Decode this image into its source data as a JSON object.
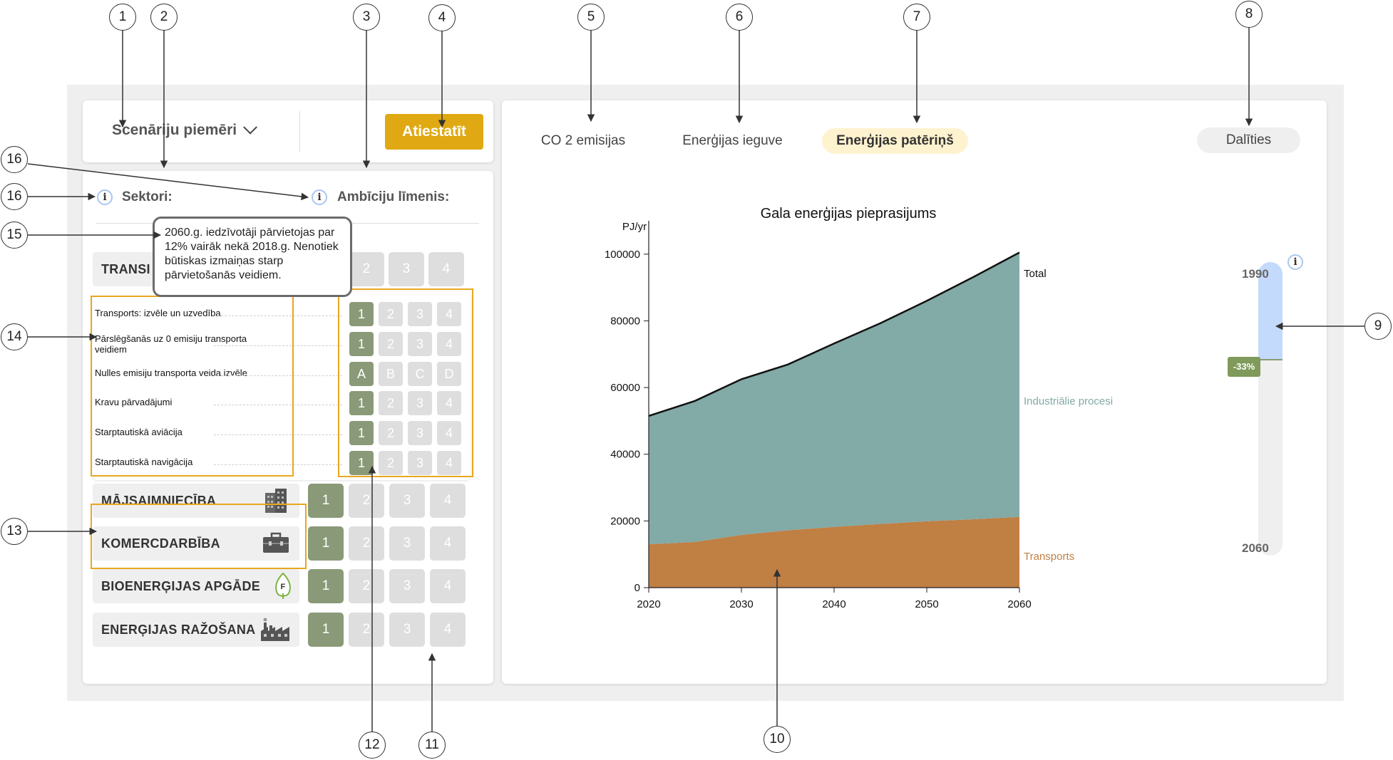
{
  "header": {
    "scenario_label": "Scenāriju piemēri",
    "reset_button": "Atiestatīt"
  },
  "left": {
    "sectors_label": "Sektori:",
    "ambition_label": "Ambīciju līmenis:",
    "tooltip": "2060.g. iedzīvotāji pārvietojas par 12% vairāk nekā 2018.g. Nenotiek būtiskas izmaiņas starp pārvietošanās veidiem.",
    "transport_label": "TRANSI",
    "transport_levels": [
      "2",
      "3",
      "4"
    ],
    "sub_items": [
      {
        "label": "Transports: izvēle un uzvedība",
        "levels": [
          "1",
          "2",
          "3",
          "4"
        ]
      },
      {
        "label": "Pārslēgšanās uz 0 emisiju transporta veidiem",
        "levels": [
          "1",
          "2",
          "3",
          "4"
        ]
      },
      {
        "label": "Nulles emisiju transporta veida izvēle",
        "levels": [
          "A",
          "B",
          "C",
          "D"
        ]
      },
      {
        "label": "Kravu pārvadājumi",
        "levels": [
          "1",
          "2",
          "3",
          "4"
        ]
      },
      {
        "label": "Starptautiskā aviācija",
        "levels": [
          "1",
          "2",
          "3",
          "4"
        ]
      },
      {
        "label": "Starptautiskā navigācija",
        "levels": [
          "1",
          "2",
          "3",
          "4"
        ]
      }
    ],
    "sectors": [
      {
        "label": "MĀJSAIMNIECĪBA",
        "icon": "building-icon",
        "levels": [
          "1",
          "2",
          "3",
          "4"
        ]
      },
      {
        "label": "KOMERCDARBĪBA",
        "icon": "briefcase-icon",
        "levels": [
          "1",
          "2",
          "3",
          "4"
        ]
      },
      {
        "label": "BIOENERĢIJAS APGĀDE",
        "icon": "leaf-icon",
        "levels": [
          "1",
          "2",
          "3",
          "4"
        ]
      },
      {
        "label": "ENERĢIJAS RAŽOŠANA",
        "icon": "factory-icon",
        "levels": [
          "1",
          "2",
          "3",
          "4"
        ]
      }
    ]
  },
  "tabs": [
    {
      "label": "CO 2 emisijas",
      "active": false
    },
    {
      "label": "Enerģijas ieguve",
      "active": false
    },
    {
      "label": "Enerģijas patēriņš",
      "active": true
    }
  ],
  "share_button": "Dalīties",
  "gauge": {
    "top_label": "1990",
    "bottom_label": "2060",
    "value": "-33%",
    "level_fraction": 0.33
  },
  "callouts": [
    "1",
    "2",
    "3",
    "4",
    "5",
    "6",
    "7",
    "8",
    "9",
    "10",
    "11",
    "12",
    "13",
    "14",
    "15",
    "16",
    "16"
  ],
  "colors": {
    "accent": "#e0a812",
    "level_on": "#8a9a78",
    "industry": "#82aaa6",
    "transport": "#c07f43",
    "tab_active": "#fff2cf",
    "gauge_blue": "#c4dafc"
  },
  "chart_data": {
    "type": "area",
    "title": "Gala enerģijas pieprasijums",
    "ylabel": "PJ/yr",
    "x": [
      2020,
      2025,
      2030,
      2035,
      2040,
      2045,
      2050,
      2055,
      2060
    ],
    "xticks": [
      "2020",
      "2030",
      "2040",
      "2050",
      "2060"
    ],
    "yticks": [
      "0",
      "20000",
      "40000",
      "60000",
      "80000",
      "100000"
    ],
    "ylim": [
      0,
      100000
    ],
    "series": [
      {
        "name": "Transports",
        "values": [
          13000,
          13700,
          15800,
          17200,
          18200,
          19100,
          19900,
          20500,
          21200
        ]
      },
      {
        "name": "Industriālie procesi",
        "values": [
          38500,
          42300,
          46700,
          49700,
          55000,
          60200,
          66100,
          72600,
          79300
        ]
      }
    ],
    "total": {
      "name": "Total",
      "values": [
        51500,
        56000,
        62500,
        66900,
        73200,
        79300,
        86000,
        93100,
        100500
      ]
    }
  }
}
